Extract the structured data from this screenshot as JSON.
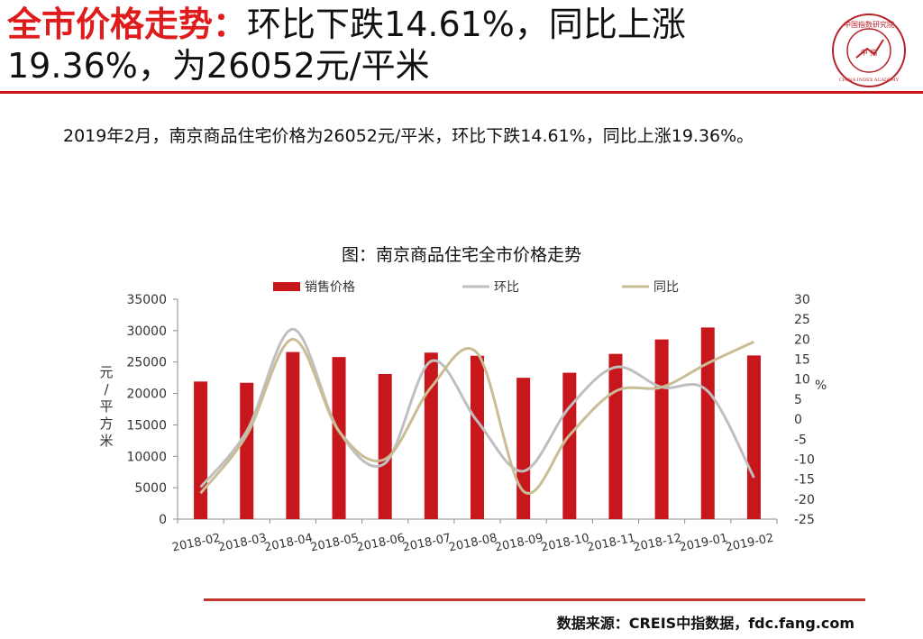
{
  "header": {
    "title_prefix": "全市价格走势：",
    "title_line1_rest": "环比下跌14.61%，同比上涨",
    "title_line2": "19.36%，为26052元/平米",
    "logo": {
      "top_text": "中国指数研究院",
      "center_text": "中 指",
      "bottom_text": "CHINA INDEX ACADEMY",
      "color": "#b8232a"
    },
    "accent_color": "#c8161d"
  },
  "summary": "2019年2月，南京商品住宅价格为26052元/平米，环比下跌14.61%，同比上涨19.36%。",
  "chart_data": {
    "type": "bar",
    "title": "图：南京商品住宅全市价格走势",
    "categories": [
      "2018-02",
      "2018-03",
      "2018-04",
      "2018-05",
      "2018-06",
      "2018-07",
      "2018-08",
      "2018-09",
      "2018-10",
      "2018-11",
      "2018-12",
      "2019-01",
      "2019-02"
    ],
    "ylabel": "元/平方米",
    "ylabel_right": "%",
    "ylim": [
      0,
      35000
    ],
    "y_ticks": [
      0,
      5000,
      10000,
      15000,
      20000,
      25000,
      30000,
      35000
    ],
    "ylim_right": [
      -25,
      30
    ],
    "y_ticks_right": [
      -25,
      -20,
      -15,
      -10,
      -5,
      0,
      5,
      10,
      15,
      20,
      25,
      30
    ],
    "grid": false,
    "legend_position": "top",
    "series": [
      {
        "name": "销售价格",
        "kind": "bar",
        "axis": "left",
        "color": "#c8161d",
        "values": [
          21900,
          21700,
          26600,
          25800,
          23100,
          26500,
          26000,
          22500,
          23300,
          26300,
          28600,
          30500,
          26052
        ]
      },
      {
        "name": "环比",
        "kind": "line",
        "axis": "right",
        "color": "#bfbfbf",
        "values": [
          -17,
          -3,
          22.5,
          -3,
          -11,
          14.5,
          -0.5,
          -13,
          3,
          13,
          8,
          7,
          -14.61
        ]
      },
      {
        "name": "同比",
        "kind": "line",
        "axis": "right",
        "color": "#c9bd95",
        "values": [
          -18.5,
          -4,
          20,
          -3,
          -10,
          8,
          16.5,
          -18,
          -4,
          7,
          8,
          14,
          19.36
        ]
      }
    ]
  },
  "source": "数据来源：CREIS中指数据，fdc.fang.com"
}
